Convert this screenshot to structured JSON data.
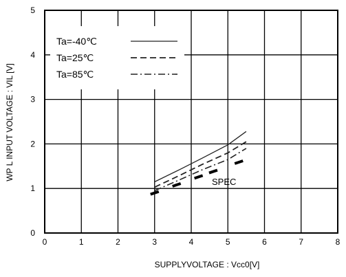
{
  "chart_data": {
    "type": "line",
    "xlabel": "SUPPLYVOLTAGE : Vcc0[V]",
    "ylabel": "WP L INPUT VOLTAGE : VIL [V]",
    "xlim": [
      0,
      8
    ],
    "ylim": [
      0,
      5
    ],
    "xticks": [
      "0",
      "1",
      "2",
      "3",
      "4",
      "5",
      "6",
      "7",
      "8"
    ],
    "yticks": [
      "0",
      "1",
      "2",
      "3",
      "4",
      "5"
    ],
    "grid": true,
    "legend_position": "top-left",
    "series": [
      {
        "name": "Ta=-40℃",
        "style": "solid",
        "x": [
          3.0,
          3.7,
          4.3,
          5.0,
          5.5
        ],
        "y": [
          1.15,
          1.43,
          1.68,
          1.98,
          2.28
        ]
      },
      {
        "name": "Ta=25℃",
        "style": "dashed",
        "x": [
          3.0,
          3.7,
          4.3,
          5.0,
          5.5
        ],
        "y": [
          1.03,
          1.3,
          1.54,
          1.8,
          2.05
        ]
      },
      {
        "name": "Ta=85℃",
        "style": "dashdot",
        "x": [
          3.0,
          3.7,
          4.3,
          5.0,
          5.5
        ],
        "y": [
          0.95,
          1.2,
          1.42,
          1.65,
          1.9
        ]
      }
    ],
    "spec": {
      "label": "SPEC",
      "x": [
        3.0,
        3.6,
        4.2,
        4.6,
        5.3
      ],
      "y": [
        0.9,
        1.08,
        1.26,
        1.38,
        1.59
      ]
    }
  }
}
